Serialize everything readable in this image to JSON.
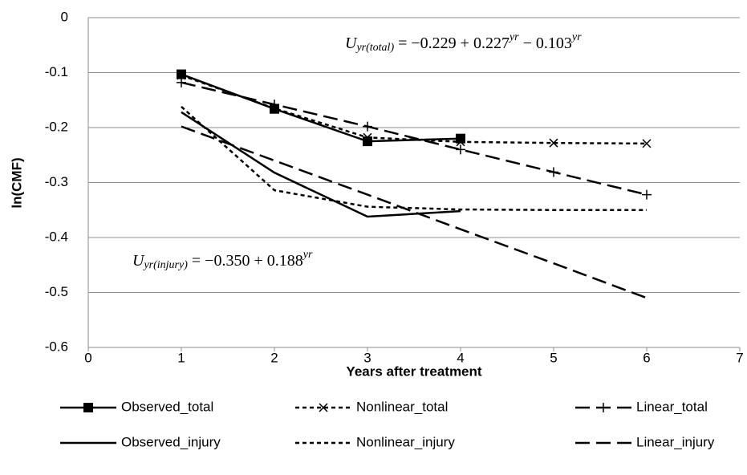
{
  "chart_data": {
    "type": "line",
    "x_label": "Years after treatment",
    "y_label": "ln(CMF)",
    "xlim": [
      0,
      7
    ],
    "xticks": [
      0,
      1,
      2,
      3,
      4,
      5,
      6,
      7
    ],
    "ylim": [
      -0.6,
      0
    ],
    "yticks": [
      0,
      -0.1,
      -0.2,
      -0.3,
      -0.4,
      -0.5,
      -0.6
    ],
    "grid": true,
    "legend": "bottom",
    "annotations": [
      {
        "parts": [
          "U",
          "yr(total)",
          " = −0.229 + 0.227",
          "yr",
          " − 0.103",
          "yr"
        ]
      },
      {
        "parts": [
          "U",
          "yr(injury)",
          " = −0.350 + 0.188",
          "yr"
        ]
      }
    ],
    "series": [
      {
        "name": "Observed_total",
        "color": "#000000",
        "line_style": "solid",
        "marker": "square",
        "x": [
          1,
          2,
          3,
          4
        ],
        "values": [
          -0.103,
          -0.166,
          -0.225,
          -0.22
        ]
      },
      {
        "name": "Nonlinear_total",
        "color": "#000000",
        "line_style": "dashed",
        "marker": "x",
        "x": [
          1,
          2,
          3,
          4,
          5,
          6
        ],
        "values": [
          -0.105,
          -0.165,
          -0.218,
          -0.226,
          -0.228,
          -0.229
        ]
      },
      {
        "name": "Linear_total",
        "color": "#000000",
        "line_style": "long-dash",
        "marker": "plus",
        "x": [
          1,
          2,
          3,
          4,
          5,
          6
        ],
        "values": [
          -0.118,
          -0.158,
          -0.198,
          -0.24,
          -0.281,
          -0.322
        ]
      },
      {
        "name": "Observed_injury",
        "color": "#000000",
        "line_style": "solid",
        "marker": null,
        "x": [
          1,
          2,
          3,
          4
        ],
        "values": [
          -0.172,
          -0.282,
          -0.362,
          -0.352
        ]
      },
      {
        "name": "Nonlinear_injury",
        "color": "#000000",
        "line_style": "dashed",
        "marker": null,
        "x": [
          1,
          2,
          3,
          4,
          5,
          6
        ],
        "values": [
          -0.162,
          -0.314,
          -0.344,
          -0.349,
          -0.35,
          -0.35
        ]
      },
      {
        "name": "Linear_injury",
        "color": "#000000",
        "line_style": "long-dash",
        "marker": null,
        "x": [
          1,
          2,
          3,
          4,
          5,
          6
        ],
        "values": [
          -0.198,
          -0.26,
          -0.322,
          -0.385,
          -0.447,
          -0.51
        ]
      }
    ]
  }
}
